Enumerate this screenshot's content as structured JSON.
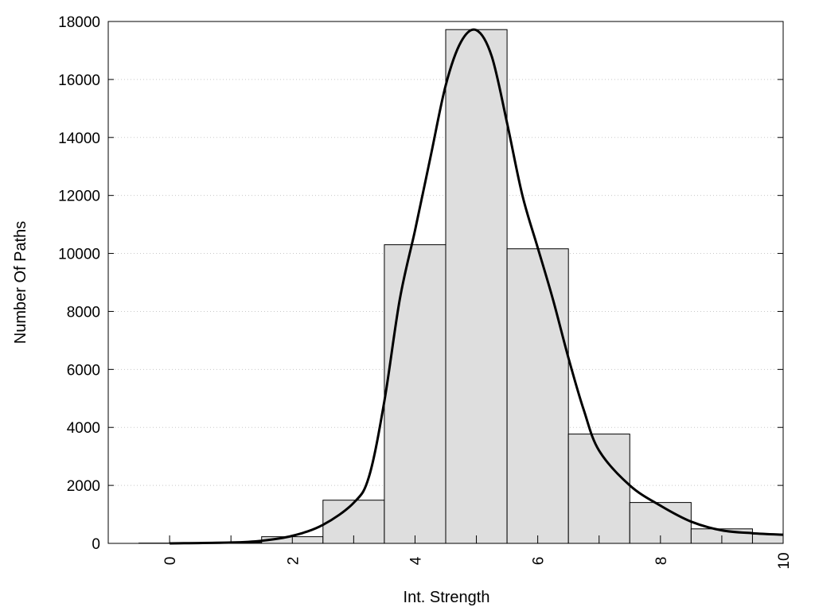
{
  "chart_data": {
    "type": "bar",
    "title": "",
    "xlabel": "Int. Strength",
    "ylabel": "Number Of Paths",
    "xlim": [
      -1,
      10
    ],
    "ylim": [
      0,
      18000
    ],
    "grid": "horizontal dotted",
    "xticks": [
      "0",
      "2",
      "4",
      "6",
      "8",
      "10"
    ],
    "yticks": [
      "0",
      "2000",
      "4000",
      "6000",
      "8000",
      "10000",
      "12000",
      "14000",
      "16000",
      "18000"
    ],
    "bar_width": 1,
    "categories": [
      0,
      1,
      2,
      3,
      4,
      5,
      6,
      7,
      8,
      9,
      10
    ],
    "values": [
      10,
      30,
      230,
      1490,
      10300,
      17720,
      10160,
      3770,
      1410,
      500,
      320
    ],
    "curve": {
      "x": [
        0,
        1,
        1.5,
        2,
        2.5,
        3,
        3.25,
        3.5,
        3.75,
        4,
        4.25,
        4.5,
        4.75,
        5,
        5.25,
        5.5,
        5.75,
        6,
        6.25,
        6.5,
        6.75,
        7,
        7.5,
        8,
        8.5,
        9,
        9.5,
        10
      ],
      "y": [
        0,
        30,
        90,
        260,
        640,
        1400,
        2300,
        4900,
        8400,
        10800,
        13300,
        15800,
        17300,
        17700,
        16800,
        14500,
        12000,
        10200,
        8400,
        6400,
        4600,
        3200,
        2000,
        1300,
        750,
        450,
        350,
        300
      ]
    },
    "colors": {
      "bar_fill": "#dedede",
      "bar_edge": "#000000",
      "curve": "#000000"
    }
  }
}
